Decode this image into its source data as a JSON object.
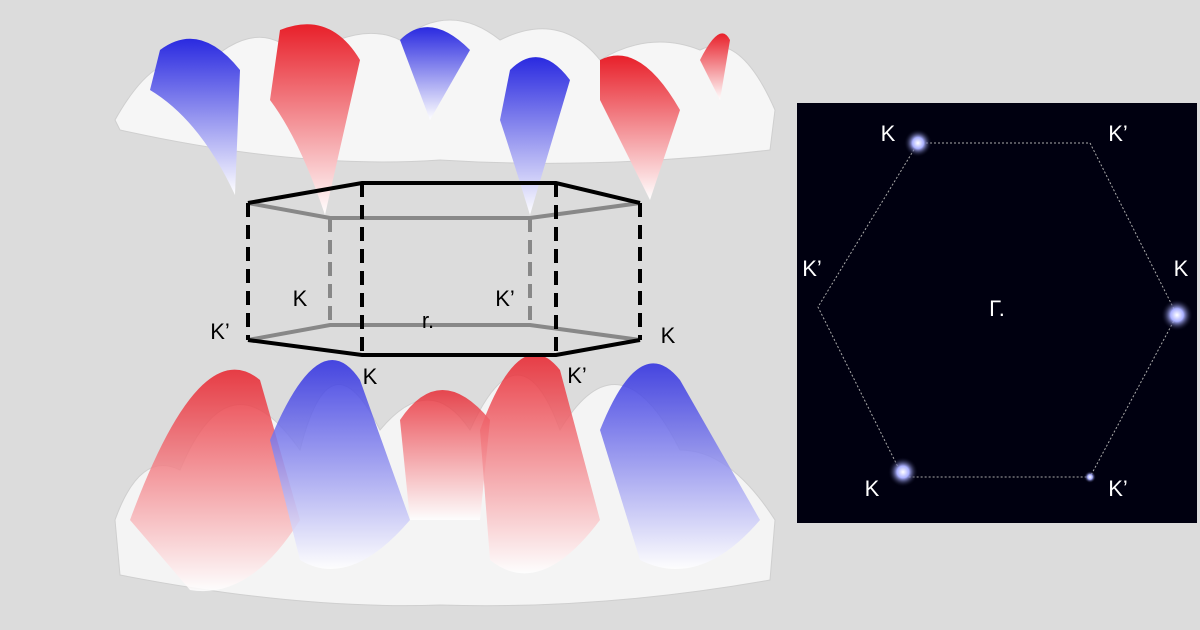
{
  "left_panel": {
    "labels": [
      "K’",
      "K",
      "r.",
      "K’",
      "K",
      "K",
      "K’"
    ]
  },
  "right_panel": {
    "labels": [
      "K",
      "K’",
      "K’",
      "K",
      "Γ.",
      "K",
      "K’"
    ]
  }
}
